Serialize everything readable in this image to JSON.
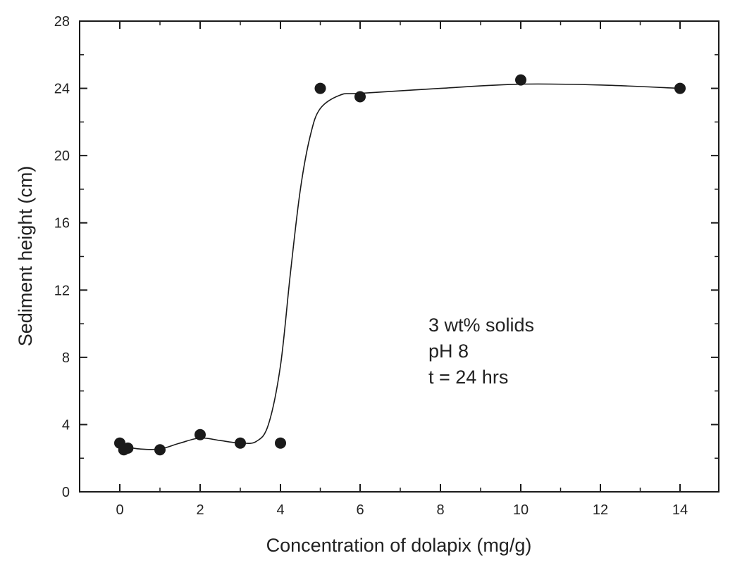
{
  "chart_data": {
    "type": "scatter",
    "title": "",
    "xlabel": "Concentration of dolapix (mg/g)",
    "ylabel": "Sediment height (cm)",
    "x_tick_labels": [
      "0",
      "2",
      "4",
      "6",
      "8",
      "10",
      "12",
      "14"
    ],
    "y_ticks": [
      0,
      4,
      8,
      12,
      16,
      20,
      24,
      28
    ],
    "ylim": [
      0,
      28
    ],
    "annotation_lines": [
      "3 wt% solids",
      "pH 8",
      "t = 24 hrs"
    ],
    "series": [
      {
        "points": [
          {
            "x": 0,
            "y": 2.9
          },
          {
            "x": 0.1,
            "y": 2.5
          },
          {
            "x": 0.2,
            "y": 2.6
          },
          {
            "x": 1,
            "y": 2.5
          },
          {
            "x": 2,
            "y": 3.4
          },
          {
            "x": 3,
            "y": 2.9
          },
          {
            "x": 4,
            "y": 2.9
          },
          {
            "x": 5,
            "y": 24.0
          },
          {
            "x": 6,
            "y": 23.5
          },
          {
            "x": 10,
            "y": 24.5
          },
          {
            "x": 14,
            "y": 24.0
          }
        ]
      }
    ],
    "fit_curve": [
      {
        "x": 0.1,
        "y": 2.7
      },
      {
        "x": 0.5,
        "y": 2.55
      },
      {
        "x": 1,
        "y": 2.55
      },
      {
        "x": 1.5,
        "y": 2.9
      },
      {
        "x": 2,
        "y": 3.2
      },
      {
        "x": 2.5,
        "y": 3.05
      },
      {
        "x": 3,
        "y": 2.9
      },
      {
        "x": 3.4,
        "y": 3.0
      },
      {
        "x": 3.7,
        "y": 4.0
      },
      {
        "x": 4,
        "y": 7.5
      },
      {
        "x": 4.25,
        "y": 13.0
      },
      {
        "x": 4.5,
        "y": 18.0
      },
      {
        "x": 4.75,
        "y": 21.2
      },
      {
        "x": 5,
        "y": 22.8
      },
      {
        "x": 5.5,
        "y": 23.6
      },
      {
        "x": 6,
        "y": 23.7
      },
      {
        "x": 8,
        "y": 24.0
      },
      {
        "x": 10,
        "y": 24.25
      },
      {
        "x": 12,
        "y": 24.2
      },
      {
        "x": 14,
        "y": 24.0
      }
    ],
    "grid": false,
    "legend": "none",
    "colors": {
      "marker": "#1a1a1a",
      "line": "#1a1a1a",
      "axis": "#1a1a1a"
    }
  }
}
